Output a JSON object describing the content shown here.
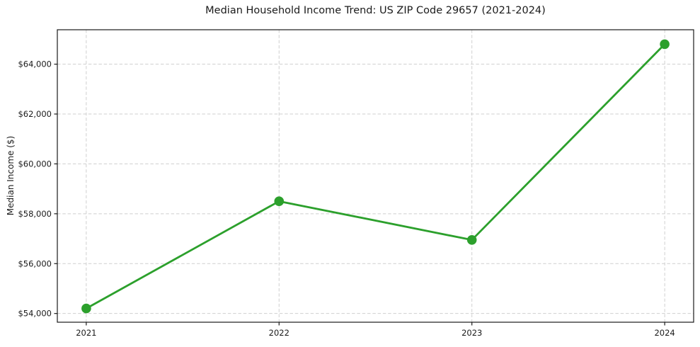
{
  "chart_data": {
    "type": "line",
    "title": "Median Household Income Trend: US ZIP Code 29657 (2021-2024)",
    "xlabel": "",
    "ylabel": "Median Income ($)",
    "x": [
      2021,
      2022,
      2023,
      2024
    ],
    "xtick_labels": [
      "2021",
      "2022",
      "2023",
      "2024"
    ],
    "values": [
      54200,
      58500,
      56950,
      64800
    ],
    "yticks": [
      54000,
      56000,
      58000,
      60000,
      62000,
      64000
    ],
    "ytick_labels": [
      "$54,000",
      "$56,000",
      "$58,000",
      "$60,000",
      "$62,000",
      "$64,000"
    ],
    "xlim": [
      2020.85,
      2024.15
    ],
    "ylim": [
      53650,
      65380
    ],
    "grid": true,
    "grid_style": "dashed",
    "legend": "none",
    "marker": "circle",
    "colors": {
      "line": "#2ca02c",
      "marker": "#2ca02c",
      "grid": "#cfcfcf",
      "spine": "#1a1a1a",
      "text": "#1a1a1a",
      "background": "#ffffff"
    }
  }
}
